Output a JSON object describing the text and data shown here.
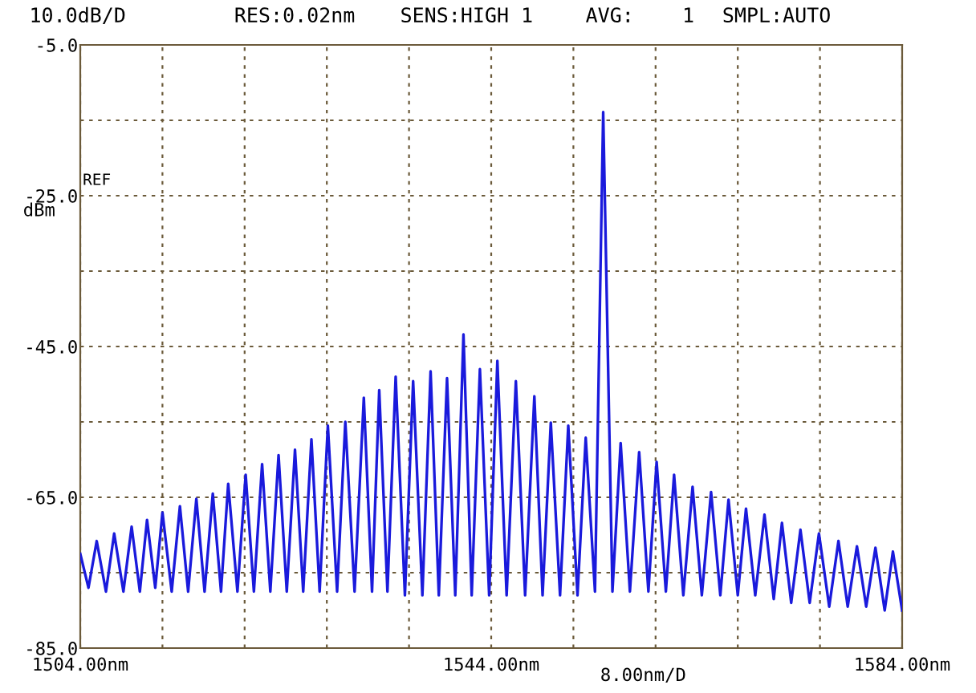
{
  "chart_data": {
    "type": "line",
    "x": [
      1504.0,
      1504.8,
      1505.6,
      1506.5,
      1507.3,
      1508.2,
      1509.0,
      1509.8,
      1510.5,
      1511.3,
      1512.0,
      1512.9,
      1513.7,
      1514.5,
      1515.3,
      1516.1,
      1516.9,
      1517.7,
      1518.4,
      1519.3,
      1520.1,
      1520.9,
      1521.7,
      1522.5,
      1523.3,
      1524.1,
      1524.9,
      1525.7,
      1526.5,
      1527.3,
      1528.1,
      1529.0,
      1529.8,
      1530.7,
      1531.6,
      1532.4,
      1533.1,
      1533.9,
      1534.7,
      1535.6,
      1536.4,
      1537.3,
      1538.1,
      1538.9,
      1539.7,
      1540.5,
      1541.3,
      1542.1,
      1542.9,
      1543.8,
      1544.6,
      1545.5,
      1546.4,
      1547.3,
      1548.2,
      1549.0,
      1549.8,
      1550.7,
      1551.5,
      1552.4,
      1553.2,
      1554.1,
      1554.9,
      1555.8,
      1556.6,
      1557.5,
      1558.4,
      1559.3,
      1560.1,
      1561.0,
      1561.8,
      1562.7,
      1563.6,
      1564.5,
      1565.4,
      1566.3,
      1567.1,
      1568.0,
      1568.8,
      1569.7,
      1570.6,
      1571.5,
      1572.3,
      1573.2,
      1574.1,
      1575.0,
      1575.9,
      1576.9,
      1577.8,
      1578.7,
      1579.6,
      1580.5,
      1581.4,
      1582.3,
      1583.1,
      1584.0
    ],
    "series": [
      {
        "color": "#1a1adc",
        "values": [
          -72.5,
          -77,
          -70.8,
          -77.5,
          -69.8,
          -77.5,
          -68.9,
          -77.5,
          -68.0,
          -77,
          -67.0,
          -77.5,
          -66.2,
          -77.5,
          -65.2,
          -77.5,
          -64.5,
          -77.5,
          -63.2,
          -77.5,
          -62.0,
          -77.5,
          -60.6,
          -77.5,
          -59.4,
          -77.5,
          -58.7,
          -77.5,
          -57.3,
          -77.5,
          -55.5,
          -77.5,
          -55.0,
          -77.5,
          -51.8,
          -77.5,
          -50.8,
          -77.5,
          -49.0,
          -78,
          -49.6,
          -78,
          -48.3,
          -78,
          -49.2,
          -78,
          -43.4,
          -78,
          -48.0,
          -78,
          -46.9,
          -78,
          -49.6,
          -78,
          -51.6,
          -78,
          -55.1,
          -78,
          -55.5,
          -78,
          -57.1,
          -77.5,
          -13.9,
          -77.5,
          -57.8,
          -77.5,
          -59.0,
          -77.5,
          -60.3,
          -77.5,
          -62.0,
          -78,
          -63.6,
          -78,
          -64.3,
          -78,
          -65.3,
          -78,
          -66.5,
          -78,
          -67.3,
          -78.5,
          -68.4,
          -79,
          -69.3,
          -79,
          -69.8,
          -79.5,
          -70.8,
          -79.5,
          -71.5,
          -79.5,
          -71.7,
          -80,
          -72.2,
          -80
        ]
      }
    ],
    "xlim": [
      1504,
      1584
    ],
    "ylim": [
      -85,
      -5
    ],
    "xticks": [
      {
        "value": 1504,
        "label": "1504.00nm"
      },
      {
        "value": 1512,
        "label": null
      },
      {
        "value": 1520,
        "label": null
      },
      {
        "value": 1528,
        "label": null
      },
      {
        "value": 1536,
        "label": null
      },
      {
        "value": 1544,
        "label": "1544.00nm"
      },
      {
        "value": 1552,
        "label": null
      },
      {
        "value": 1560,
        "label": null
      },
      {
        "value": 1568,
        "label": null
      },
      {
        "value": 1576,
        "label": null
      },
      {
        "value": 1584,
        "label": "1584.00nm"
      }
    ],
    "yticks": [
      {
        "value": -85,
        "label": "-85.0"
      },
      {
        "value": -75,
        "label": null
      },
      {
        "value": -65,
        "label": "-65.0"
      },
      {
        "value": -55,
        "label": null
      },
      {
        "value": -45,
        "label": "-45.0"
      },
      {
        "value": -35,
        "label": null
      },
      {
        "value": -25,
        "label": "-25.0"
      },
      {
        "value": -15,
        "label": null
      },
      {
        "value": -5,
        "label": "-5.0"
      }
    ],
    "ylabel": "dBm",
    "annotations": [
      "10.0dB/D",
      "RES:0.02nm",
      "SENS:HIGH 1",
      "AVG:    1",
      "SMPL:AUTO",
      "REF",
      "8.00nm/D"
    ],
    "grid": true,
    "line_style": "solid"
  }
}
